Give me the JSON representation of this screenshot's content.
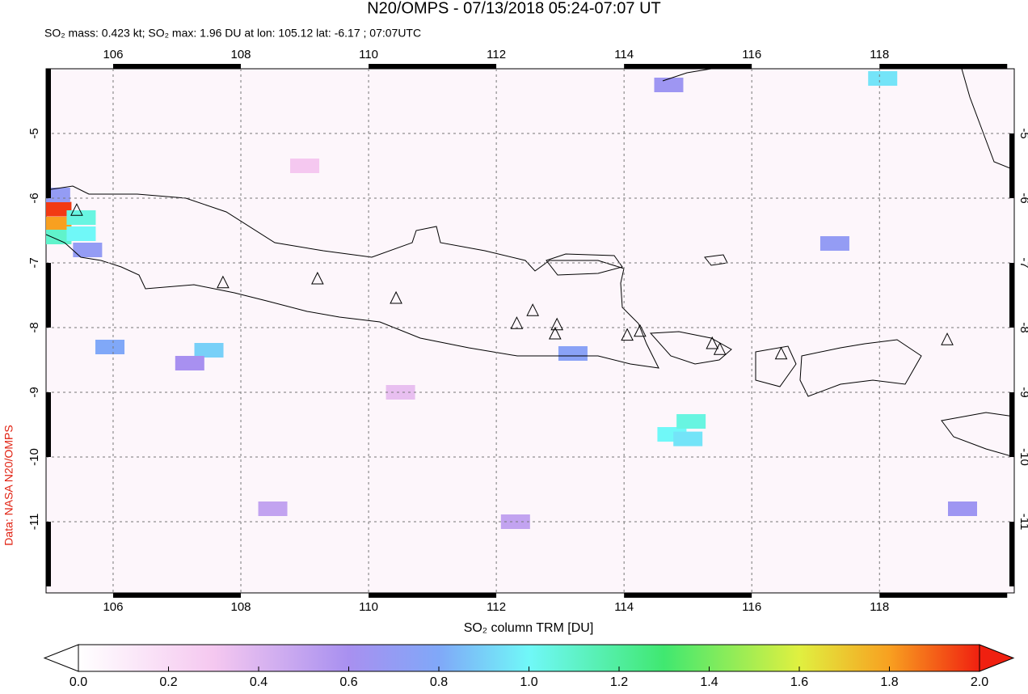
{
  "title": "N20/OMPS - 07/13/2018 05:24-07:07 UT",
  "subtitle": "SO₂ mass: 0.423 kt; SO₂ max: 1.96 DU at lon: 105.12 lat: -6.17 ; 07:07UTC",
  "credit": "Data: NASA N20/OMPS",
  "map": {
    "lonlim": [
      104.95,
      120.11
    ],
    "latlim": [
      -4.0,
      -12.1
    ],
    "lon_ticks": [
      106,
      108,
      110,
      112,
      114,
      116,
      118
    ],
    "lat_ticks": [
      -5,
      -6,
      -7,
      -8,
      -9,
      -10,
      -11
    ],
    "volcanoes": [
      [
        105.43,
        -6.19
      ],
      [
        107.72,
        -7.31
      ],
      [
        109.2,
        -7.25
      ],
      [
        110.43,
        -7.55
      ],
      [
        112.32,
        -7.94
      ],
      [
        112.57,
        -7.74
      ],
      [
        112.95,
        -7.96
      ],
      [
        112.92,
        -8.1
      ],
      [
        114.05,
        -8.12
      ],
      [
        114.25,
        -8.06
      ],
      [
        115.38,
        -8.25
      ],
      [
        115.5,
        -8.34
      ],
      [
        116.46,
        -8.41
      ],
      [
        119.06,
        -8.19
      ]
    ],
    "pixels": [
      {
        "lon": 105.12,
        "lat": -6.17,
        "value": 1.96
      },
      {
        "lon": 105.12,
        "lat": -6.4,
        "value": 1.8
      },
      {
        "lon": 105.12,
        "lat": -6.6,
        "value": 1.1
      },
      {
        "lon": 105.5,
        "lat": -6.3,
        "value": 1.05
      },
      {
        "lon": 105.5,
        "lat": -6.55,
        "value": 1.0
      },
      {
        "lon": 105.6,
        "lat": -6.8,
        "value": 0.7
      },
      {
        "lon": 105.1,
        "lat": -5.95,
        "value": 0.7
      },
      {
        "lon": 105.95,
        "lat": -8.3,
        "value": 0.8
      },
      {
        "lon": 107.5,
        "lat": -8.35,
        "value": 0.9
      },
      {
        "lon": 107.2,
        "lat": -8.55,
        "value": 0.6
      },
      {
        "lon": 114.75,
        "lat": -9.65,
        "value": 1.0
      },
      {
        "lon": 115.05,
        "lat": -9.45,
        "value": 1.05
      },
      {
        "lon": 115.0,
        "lat": -9.72,
        "value": 0.95
      },
      {
        "lon": 113.2,
        "lat": -8.4,
        "value": 0.75
      },
      {
        "lon": 118.05,
        "lat": -4.15,
        "value": 0.95
      },
      {
        "lon": 117.3,
        "lat": -6.7,
        "value": 0.7
      },
      {
        "lon": 114.7,
        "lat": -4.25,
        "value": 0.65
      },
      {
        "lon": 119.3,
        "lat": -10.8,
        "value": 0.65
      },
      {
        "lon": 112.3,
        "lat": -11.0,
        "value": 0.5
      },
      {
        "lon": 108.5,
        "lat": -10.8,
        "value": 0.5
      },
      {
        "lon": 110.5,
        "lat": -9.0,
        "value": 0.35
      },
      {
        "lon": 109.0,
        "lat": -5.5,
        "value": 0.3
      }
    ]
  },
  "colorbar": {
    "label": "SO₂ column TRM [DU]",
    "lim": [
      0,
      2
    ],
    "ticks": [
      {
        "value": 0,
        "label": "0.0"
      },
      {
        "value": 0.2,
        "label": "0.2"
      },
      {
        "value": 0.4,
        "label": "0.4"
      },
      {
        "value": 0.6,
        "label": "0.6"
      },
      {
        "value": 0.8,
        "label": "0.8"
      },
      {
        "value": 1,
        "label": "1.0"
      },
      {
        "value": 1.2,
        "label": "1.2"
      },
      {
        "value": 1.4,
        "label": "1.4"
      },
      {
        "value": 1.6,
        "label": "1.6"
      },
      {
        "value": 1.8,
        "label": "1.8"
      },
      {
        "value": 2,
        "label": "2.0"
      }
    ]
  }
}
